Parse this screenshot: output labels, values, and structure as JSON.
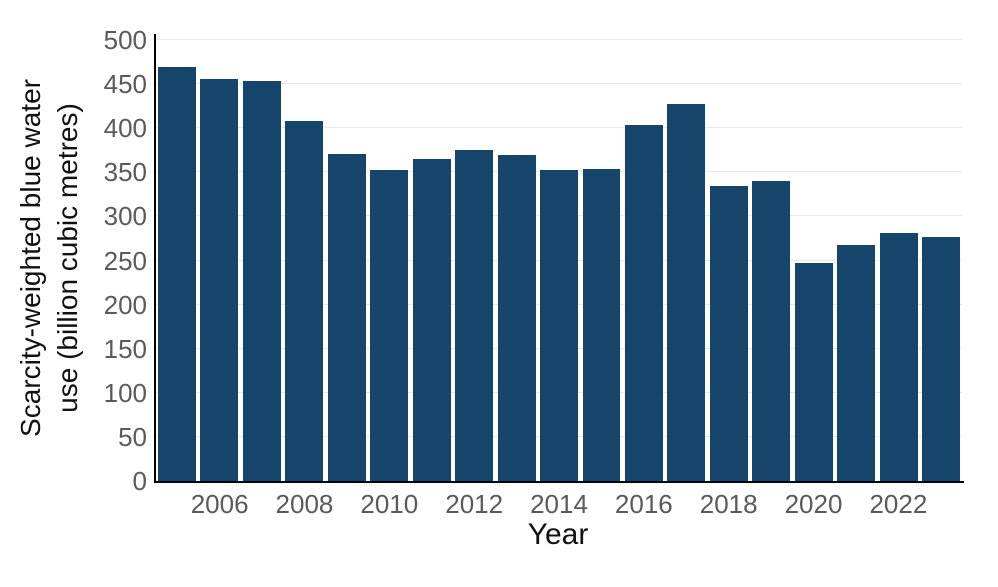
{
  "chart_data": {
    "type": "bar",
    "title": "",
    "xlabel": "Year",
    "ylabel_line1": "Scarcity-weighted blue water",
    "ylabel_line2": "use (billion cubic metres)",
    "categories": [
      2005,
      2006,
      2007,
      2008,
      2009,
      2010,
      2011,
      2012,
      2013,
      2014,
      2015,
      2016,
      2017,
      2018,
      2019,
      2020,
      2021,
      2022,
      2023
    ],
    "values": [
      469,
      456,
      453,
      408,
      371,
      353,
      365,
      375,
      370,
      353,
      354,
      404,
      428,
      335,
      340,
      247,
      268,
      281,
      277
    ],
    "ylim": [
      0,
      500
    ],
    "yticks": [
      0,
      50,
      100,
      150,
      200,
      250,
      300,
      350,
      400,
      450,
      500
    ],
    "xtick_labels": [
      2006,
      2008,
      2010,
      2012,
      2014,
      2016,
      2018,
      2020,
      2022
    ],
    "legend": "none",
    "grid": "horizontal",
    "colors": {
      "bar": "#15456B",
      "tick_label": "#5a5a5a",
      "axis_title": "#111111",
      "gridline": "#e9e9e9",
      "spine": "#000000",
      "background": "#ffffff"
    }
  }
}
